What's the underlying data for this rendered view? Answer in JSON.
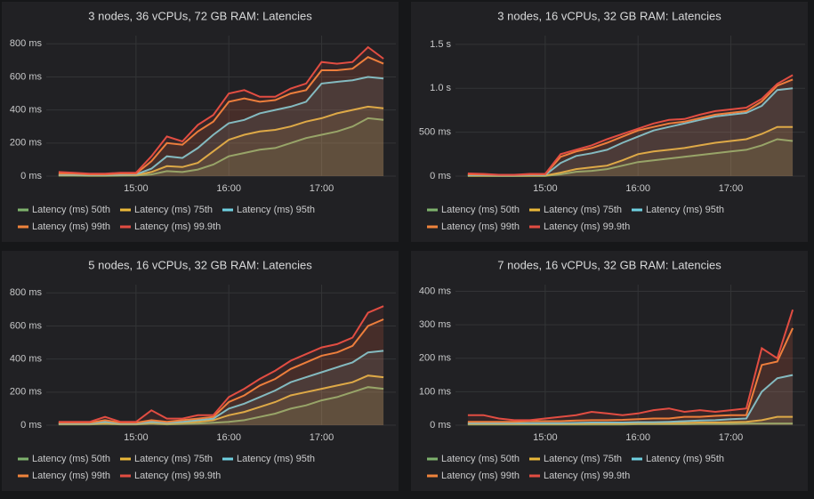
{
  "chart_data": [
    {
      "type": "line",
      "title": "3 nodes, 36 vCPUs, 72 GB RAM: Latencies",
      "x": [
        "14:10",
        "14:20",
        "14:30",
        "14:40",
        "14:50",
        "15:00",
        "15:10",
        "15:20",
        "15:30",
        "15:40",
        "15:50",
        "16:00",
        "16:10",
        "16:20",
        "16:30",
        "16:40",
        "16:50",
        "17:00",
        "17:10",
        "17:20",
        "17:30",
        "17:40"
      ],
      "xlim": [
        "14:02",
        "17:48"
      ],
      "xticks": [
        "15:00",
        "16:00",
        "17:00"
      ],
      "ylim": [
        0,
        850
      ],
      "yticks": [
        {
          "value": 0,
          "label": "0 ms"
        },
        {
          "value": 200,
          "label": "200 ms"
        },
        {
          "value": 400,
          "label": "400 ms"
        },
        {
          "value": 600,
          "label": "600 ms"
        },
        {
          "value": 800,
          "label": "800 ms"
        }
      ],
      "grid": true,
      "series": [
        {
          "name": "Latency (ms) 50th",
          "color": "#7eb26d",
          "values": [
            3,
            3,
            2,
            2,
            3,
            3,
            10,
            30,
            25,
            40,
            70,
            120,
            140,
            160,
            170,
            200,
            230,
            250,
            270,
            300,
            350,
            340
          ]
        },
        {
          "name": "Latency (ms) 75th",
          "color": "#eab839",
          "values": [
            5,
            5,
            4,
            4,
            5,
            6,
            25,
            60,
            55,
            80,
            150,
            220,
            250,
            270,
            280,
            300,
            330,
            350,
            380,
            400,
            420,
            410
          ]
        },
        {
          "name": "Latency (ms) 95th",
          "color": "#6ed0e0",
          "values": [
            8,
            8,
            6,
            6,
            8,
            10,
            45,
            120,
            110,
            170,
            250,
            320,
            340,
            380,
            400,
            420,
            450,
            560,
            570,
            580,
            600,
            590
          ]
        },
        {
          "name": "Latency (ms) 99th",
          "color": "#ef843c",
          "values": [
            15,
            15,
            10,
            10,
            15,
            15,
            90,
            200,
            190,
            270,
            330,
            450,
            470,
            450,
            460,
            500,
            520,
            640,
            640,
            650,
            720,
            680
          ]
        },
        {
          "name": "Latency (ms) 99.9th",
          "color": "#e24d42",
          "values": [
            25,
            20,
            15,
            15,
            20,
            20,
            120,
            240,
            210,
            310,
            370,
            500,
            520,
            480,
            480,
            530,
            560,
            690,
            680,
            690,
            780,
            710
          ]
        }
      ]
    },
    {
      "type": "line",
      "title": "3 nodes, 16 vCPUs, 32 GB RAM: Latencies",
      "x": [
        "14:10",
        "14:20",
        "14:30",
        "14:40",
        "14:50",
        "15:00",
        "15:10",
        "15:20",
        "15:30",
        "15:40",
        "15:50",
        "16:00",
        "16:10",
        "16:20",
        "16:30",
        "16:40",
        "16:50",
        "17:00",
        "17:10",
        "17:20",
        "17:30",
        "17:40"
      ],
      "xlim": [
        "14:02",
        "17:48"
      ],
      "xticks": [
        "15:00",
        "16:00",
        "17:00"
      ],
      "ylim": [
        0,
        1600
      ],
      "yticks": [
        {
          "value": 0,
          "label": "0 ms"
        },
        {
          "value": 500,
          "label": "500 ms"
        },
        {
          "value": 1000,
          "label": "1.0 s"
        },
        {
          "value": 1500,
          "label": "1.5 s"
        }
      ],
      "grid": true,
      "series": [
        {
          "name": "Latency (ms) 50th",
          "color": "#7eb26d",
          "values": [
            3,
            3,
            2,
            2,
            3,
            3,
            20,
            50,
            60,
            80,
            120,
            160,
            180,
            200,
            220,
            240,
            260,
            280,
            300,
            350,
            420,
            400
          ]
        },
        {
          "name": "Latency (ms) 75th",
          "color": "#eab839",
          "values": [
            5,
            5,
            4,
            4,
            5,
            6,
            40,
            80,
            100,
            120,
            180,
            250,
            280,
            300,
            320,
            350,
            380,
            400,
            420,
            480,
            560,
            560
          ]
        },
        {
          "name": "Latency (ms) 95th",
          "color": "#6ed0e0",
          "values": [
            10,
            10,
            8,
            8,
            10,
            12,
            150,
            230,
            260,
            300,
            380,
            450,
            520,
            560,
            600,
            640,
            680,
            700,
            720,
            800,
            980,
            1000
          ]
        },
        {
          "name": "Latency (ms) 99th",
          "color": "#ef843c",
          "values": [
            20,
            18,
            12,
            12,
            18,
            20,
            220,
            280,
            320,
            380,
            450,
            520,
            560,
            600,
            620,
            660,
            700,
            720,
            740,
            850,
            1030,
            1100
          ]
        },
        {
          "name": "Latency (ms) 99.9th",
          "color": "#e24d42",
          "values": [
            30,
            25,
            15,
            15,
            25,
            25,
            250,
            300,
            350,
            420,
            480,
            540,
            600,
            640,
            650,
            700,
            740,
            760,
            780,
            880,
            1050,
            1150
          ]
        }
      ]
    },
    {
      "type": "line",
      "title": "5 nodes, 16 vCPUs, 32 GB RAM: Latencies",
      "x": [
        "14:10",
        "14:20",
        "14:30",
        "14:40",
        "14:50",
        "15:00",
        "15:10",
        "15:20",
        "15:30",
        "15:40",
        "15:50",
        "16:00",
        "16:10",
        "16:20",
        "16:30",
        "16:40",
        "16:50",
        "17:00",
        "17:10",
        "17:20",
        "17:30",
        "17:40"
      ],
      "xlim": [
        "14:02",
        "17:48"
      ],
      "xticks": [
        "15:00",
        "16:00",
        "17:00"
      ],
      "ylim": [
        0,
        850
      ],
      "yticks": [
        {
          "value": 0,
          "label": "0 ms"
        },
        {
          "value": 200,
          "label": "200 ms"
        },
        {
          "value": 400,
          "label": "400 ms"
        },
        {
          "value": 600,
          "label": "600 ms"
        },
        {
          "value": 800,
          "label": "800 ms"
        }
      ],
      "grid": true,
      "series": [
        {
          "name": "Latency (ms) 50th",
          "color": "#7eb26d",
          "values": [
            5,
            5,
            5,
            8,
            5,
            5,
            10,
            5,
            8,
            10,
            15,
            20,
            30,
            50,
            70,
            100,
            120,
            150,
            170,
            200,
            230,
            220
          ]
        },
        {
          "name": "Latency (ms) 75th",
          "color": "#eab839",
          "values": [
            8,
            8,
            8,
            12,
            8,
            8,
            15,
            10,
            15,
            20,
            30,
            60,
            80,
            110,
            140,
            180,
            200,
            220,
            240,
            260,
            300,
            290
          ]
        },
        {
          "name": "Latency (ms) 95th",
          "color": "#6ed0e0",
          "values": [
            10,
            10,
            10,
            20,
            10,
            10,
            20,
            15,
            20,
            30,
            40,
            100,
            130,
            170,
            210,
            260,
            290,
            320,
            350,
            380,
            440,
            450
          ]
        },
        {
          "name": "Latency (ms) 99th",
          "color": "#ef843c",
          "values": [
            15,
            15,
            15,
            30,
            15,
            15,
            30,
            20,
            30,
            40,
            50,
            140,
            180,
            240,
            280,
            340,
            380,
            420,
            440,
            480,
            600,
            640
          ]
        },
        {
          "name": "Latency (ms) 99.9th",
          "color": "#e24d42",
          "values": [
            20,
            20,
            20,
            50,
            20,
            20,
            90,
            40,
            40,
            60,
            60,
            170,
            220,
            280,
            330,
            390,
            430,
            470,
            490,
            530,
            680,
            720
          ]
        }
      ]
    },
    {
      "type": "line",
      "title": "7 nodes, 16 vCPUs, 32 GB RAM: Latencies",
      "x": [
        "14:10",
        "14:20",
        "14:30",
        "14:40",
        "14:50",
        "15:00",
        "15:10",
        "15:20",
        "15:30",
        "15:40",
        "15:50",
        "16:00",
        "16:10",
        "16:20",
        "16:30",
        "16:40",
        "16:50",
        "17:00",
        "17:10",
        "17:20",
        "17:30",
        "17:40"
      ],
      "xlim": [
        "14:02",
        "17:48"
      ],
      "xticks": [
        "15:00",
        "16:00",
        "17:00"
      ],
      "ylim": [
        0,
        420
      ],
      "yticks": [
        {
          "value": 0,
          "label": "0 ms"
        },
        {
          "value": 100,
          "label": "100 ms"
        },
        {
          "value": 200,
          "label": "200 ms"
        },
        {
          "value": 300,
          "label": "300 ms"
        },
        {
          "value": 400,
          "label": "400 ms"
        }
      ],
      "grid": true,
      "series": [
        {
          "name": "Latency (ms) 50th",
          "color": "#7eb26d",
          "values": [
            2,
            2,
            2,
            2,
            2,
            2,
            2,
            2,
            2,
            2,
            2,
            3,
            3,
            3,
            3,
            4,
            4,
            4,
            5,
            5,
            5,
            5
          ]
        },
        {
          "name": "Latency (ms) 75th",
          "color": "#eab839",
          "values": [
            4,
            4,
            4,
            4,
            4,
            4,
            4,
            4,
            5,
            5,
            5,
            6,
            6,
            6,
            7,
            8,
            8,
            9,
            10,
            15,
            25,
            25
          ]
        },
        {
          "name": "Latency (ms) 95th",
          "color": "#6ed0e0",
          "values": [
            6,
            6,
            6,
            6,
            6,
            6,
            6,
            7,
            8,
            8,
            8,
            9,
            9,
            10,
            12,
            14,
            15,
            18,
            20,
            100,
            140,
            150
          ]
        },
        {
          "name": "Latency (ms) 99th",
          "color": "#ef843c",
          "values": [
            10,
            10,
            10,
            10,
            12,
            12,
            12,
            14,
            15,
            15,
            16,
            18,
            20,
            20,
            25,
            25,
            28,
            30,
            30,
            180,
            190,
            290
          ]
        },
        {
          "name": "Latency (ms) 99.9th",
          "color": "#e24d42",
          "values": [
            30,
            30,
            20,
            15,
            15,
            20,
            25,
            30,
            40,
            35,
            30,
            35,
            45,
            50,
            40,
            45,
            40,
            45,
            50,
            230,
            200,
            345
          ]
        }
      ]
    }
  ]
}
